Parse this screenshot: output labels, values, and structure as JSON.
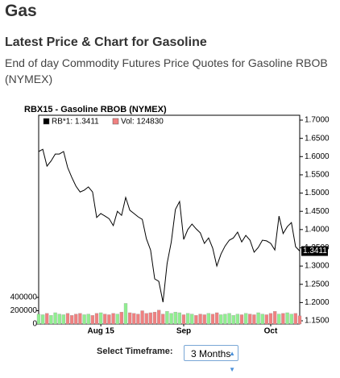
{
  "header": {
    "title": "Gas",
    "subtitle": "Latest Price & Chart for Gasoline",
    "description": "End of day Commodity Futures Price Quotes for Gasoline RBOB (NYMEX)"
  },
  "chart_data": {
    "type": "line",
    "title": "RBX15 - Gasoline RBOB (NYMEX)",
    "categories": [
      null,
      null,
      null,
      null,
      null,
      null,
      null,
      null,
      null,
      null,
      null,
      null,
      null,
      null,
      null,
      "Aug 15",
      null,
      null,
      null,
      null,
      null,
      null,
      null,
      null,
      null,
      null,
      null,
      null,
      null,
      null,
      null,
      null,
      null,
      null,
      null,
      "Sep",
      null,
      null,
      null,
      null,
      null,
      null,
      null,
      null,
      null,
      null,
      null,
      null,
      null,
      null,
      null,
      null,
      null,
      null,
      null,
      null,
      "Oct",
      null,
      null,
      null,
      null,
      null,
      null,
      null
    ],
    "series": [
      {
        "name": "RB*1: 1.3411",
        "color": "#000000",
        "values": [
          1.614,
          1.62,
          1.574,
          1.588,
          1.607,
          1.607,
          1.614,
          1.57,
          1.543,
          1.519,
          1.503,
          1.508,
          1.517,
          1.503,
          1.433,
          1.444,
          1.437,
          1.43,
          1.411,
          1.45,
          1.439,
          1.488,
          1.453,
          1.444,
          1.435,
          1.428,
          1.375,
          1.344,
          1.265,
          1.258,
          1.201,
          1.307,
          1.366,
          1.455,
          1.477,
          1.373,
          1.4,
          1.415,
          1.402,
          1.391,
          1.362,
          1.377,
          1.349,
          1.3,
          1.333,
          1.355,
          1.371,
          1.377,
          1.393,
          1.366,
          1.384,
          1.371,
          1.338,
          1.351,
          1.371,
          1.369,
          1.362,
          1.344,
          1.437,
          1.389,
          1.408,
          1.419,
          1.353,
          1.3411
        ]
      },
      {
        "name": "Vol: 124830",
        "color": "#f08080",
        "up_color": "#90ee90",
        "down_color": "#f08080",
        "axis": "y2",
        "values": [
          150000,
          140000,
          160000,
          130000,
          170000,
          150000,
          140000,
          160000,
          130000,
          150000,
          160000,
          140000,
          150000,
          130000,
          160000,
          170000,
          150000,
          140000,
          160000,
          150000,
          180000,
          310000,
          170000,
          160000,
          150000,
          200000,
          160000,
          170000,
          180000,
          210000,
          150000,
          190000,
          160000,
          180000,
          170000,
          140000,
          160000,
          150000,
          130000,
          150000,
          140000,
          160000,
          150000,
          170000,
          140000,
          150000,
          160000,
          130000,
          150000,
          140000,
          160000,
          150000,
          140000,
          170000,
          150000,
          140000,
          160000,
          190000,
          150000,
          160000,
          170000,
          150000,
          160000,
          124830
        ]
      }
    ],
    "ylim": [
      1.1412,
      1.7133
    ],
    "yticks": [
      {
        "value": 1.15,
        "label": "1.1500"
      },
      {
        "value": 1.2,
        "label": "1.2000"
      },
      {
        "value": 1.25,
        "label": "1.2500"
      },
      {
        "value": 1.3,
        "label": "1.3000"
      },
      {
        "value": 1.35,
        "label": "1.3500"
      },
      {
        "value": 1.4,
        "label": "1.4000"
      },
      {
        "value": 1.45,
        "label": "1.4500"
      },
      {
        "value": 1.5,
        "label": "1.5000"
      },
      {
        "value": 1.55,
        "label": "1.5500"
      },
      {
        "value": 1.6,
        "label": "1.6000"
      },
      {
        "value": 1.65,
        "label": "1.6500"
      },
      {
        "value": 1.7,
        "label": "1.7000"
      }
    ],
    "y2lim": [
      0,
      3140000
    ],
    "y2ticks": [
      0,
      200000,
      400000
    ],
    "grid": false
  },
  "controls": {
    "label": "Select Timeframe:",
    "selected": "3 Months"
  }
}
